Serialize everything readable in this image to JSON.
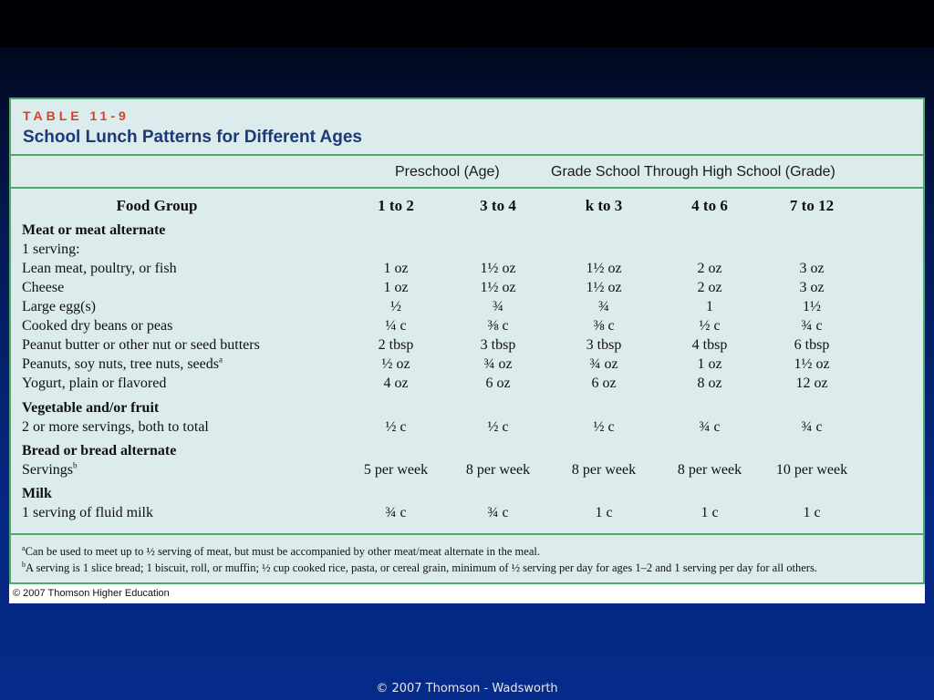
{
  "table": {
    "label": "TABLE 11-9",
    "title": "School Lunch Patterns for Different Ages",
    "group_preschool": "Preschool (Age)",
    "group_grade": "Grade School Through High School (Grade)",
    "columns": [
      "Food Group",
      "1 to 2",
      "3 to 4",
      "k to 3",
      "4 to 6",
      "7 to 12"
    ],
    "rows": [
      {
        "label": "Meat or meat alternate",
        "bold": true,
        "values": [
          "",
          "",
          "",
          "",
          ""
        ]
      },
      {
        "label": "1 serving:",
        "bold": false,
        "values": [
          "",
          "",
          "",
          "",
          ""
        ]
      },
      {
        "label": "Lean meat, poultry, or fish",
        "bold": false,
        "values": [
          "1 oz",
          "1½ oz",
          "1½ oz",
          "2 oz",
          "3 oz"
        ]
      },
      {
        "label": "Cheese",
        "bold": false,
        "values": [
          "1 oz",
          "1½ oz",
          "1½ oz",
          "2 oz",
          "3 oz"
        ]
      },
      {
        "label": "Large egg(s)",
        "bold": false,
        "values": [
          "½",
          "¾",
          "¾",
          "1",
          "1½"
        ]
      },
      {
        "label": "Cooked dry beans or peas",
        "bold": false,
        "values": [
          "¼ c",
          "⅜ c",
          "⅜ c",
          "½ c",
          "¾ c"
        ]
      },
      {
        "label": "Peanut butter or other nut or seed butters",
        "bold": false,
        "values": [
          "2 tbsp",
          "3 tbsp",
          "3 tbsp",
          "4 tbsp",
          "6 tbsp"
        ]
      },
      {
        "label": "Peanuts, soy nuts, tree nuts, seeds",
        "sup": "a",
        "bold": false,
        "values": [
          "½ oz",
          "¾ oz",
          "¾ oz",
          "1 oz",
          "1½ oz"
        ]
      },
      {
        "label": "Yogurt, plain or flavored",
        "bold": false,
        "values": [
          "4 oz",
          "6 oz",
          "6 oz",
          "8 oz",
          "12 oz"
        ]
      },
      {
        "label": "Vegetable and/or fruit",
        "bold": true,
        "values": [
          "",
          "",
          "",
          "",
          ""
        ]
      },
      {
        "label": "2 or more servings, both to total",
        "bold": false,
        "values": [
          "½ c",
          "½ c",
          "½ c",
          "¾ c",
          "¾ c"
        ]
      },
      {
        "label": "Bread or bread alternate",
        "bold": true,
        "values": [
          "",
          "",
          "",
          "",
          ""
        ]
      },
      {
        "label": "Servings",
        "sup": "b",
        "bold": false,
        "values": [
          "5 per week",
          "8 per week",
          "8 per week",
          "8 per week",
          "10 per week"
        ]
      },
      {
        "label": "Milk",
        "bold": true,
        "values": [
          "",
          "",
          "",
          "",
          ""
        ]
      },
      {
        "label": "1 serving of fluid milk",
        "bold": false,
        "values": [
          "¾ c",
          "¾ c",
          "1 c",
          "1 c",
          "1 c"
        ]
      }
    ],
    "footnote_a_mark": "a",
    "footnote_a": "Can be used to meet up to ½ serving of meat, but must be accompanied by other meat/meat alternate in the meal.",
    "footnote_b_mark": "b",
    "footnote_b": "A serving is 1 slice bread; 1 biscuit, roll, or muffin; ½ cup cooked rice, pasta, or cereal grain, minimum of ½ serving per day for ages 1–2 and 1 serving per day for all others.",
    "credit": "© 2007 Thomson Higher Education"
  },
  "slide_credit": "© 2007 Thomson - Wadsworth",
  "colors": {
    "accent_red": "#d4402a",
    "title_blue": "#1d3a78",
    "rule_green": "#4cab6b",
    "table_bg": "#dcebeb"
  }
}
